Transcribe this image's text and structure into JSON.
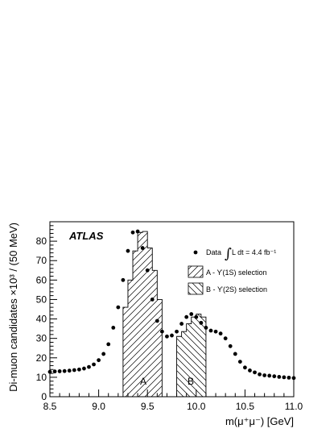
{
  "chart_data": {
    "type": "scatter",
    "experiment_label": "ATLAS",
    "xlabel": "m(μ⁺μ⁻) [GeV]",
    "ylabel": "Di-muon candidates ×10³ / (50 MeV)",
    "xlim": [
      8.5,
      11.0
    ],
    "ylim": [
      0,
      90
    ],
    "x_ticks": [
      "8.5",
      "9.0",
      "9.5",
      "10.0",
      "10.5",
      "11.0"
    ],
    "y_ticks": [
      "0",
      "10",
      "20",
      "30",
      "40",
      "50",
      "60",
      "70",
      "80"
    ],
    "grid": false,
    "legend_position": "top-right",
    "legend": {
      "data": "Data",
      "integral_sign": "∫",
      "luminosity": "L dt = 4.4 fb⁻¹",
      "selection_a": "A - ϒ(1S) selection",
      "selection_b": "B - ϒ(2S) selection"
    },
    "region_labels": {
      "a": "A",
      "b": "B"
    },
    "series": [
      {
        "name": "Data",
        "style": "markers",
        "x": [
          8.5,
          8.55,
          8.6,
          8.65,
          8.7,
          8.75,
          8.8,
          8.85,
          8.9,
          8.95,
          9.0,
          9.05,
          9.1,
          9.15,
          9.2,
          9.25,
          9.3,
          9.35,
          9.4,
          9.45,
          9.5,
          9.55,
          9.6,
          9.65,
          9.7,
          9.75,
          9.8,
          9.85,
          9.9,
          9.95,
          10.0,
          10.05,
          10.1,
          10.15,
          10.2,
          10.25,
          10.3,
          10.35,
          10.4,
          10.45,
          10.5,
          10.55,
          10.6,
          10.65,
          10.7,
          10.75,
          10.8,
          10.85,
          10.9,
          10.95,
          11.0
        ],
        "y": [
          12.8,
          13.0,
          13.1,
          13.2,
          13.4,
          13.7,
          14.0,
          14.5,
          15.3,
          16.6,
          18.8,
          22.0,
          27.0,
          35.5,
          46.0,
          60.0,
          75.0,
          84.5,
          85.0,
          76.5,
          65.0,
          50.0,
          39.0,
          33.5,
          31.0,
          31.5,
          33.5,
          37.5,
          41.0,
          42.5,
          41.0,
          38.0,
          35.5,
          34.0,
          33.5,
          32.5,
          30.0,
          26.0,
          22.0,
          18.0,
          15.0,
          13.5,
          12.5,
          11.5,
          11.0,
          10.8,
          10.5,
          10.2,
          10.0,
          9.8,
          9.6
        ]
      },
      {
        "name": "A - ϒ(1S) selection",
        "style": "hatched-histogram",
        "bin_edges": [
          9.25,
          9.3,
          9.35,
          9.4,
          9.45,
          9.5,
          9.55,
          9.6,
          9.65
        ],
        "values": [
          46.0,
          60.0,
          75.0,
          84.5,
          85.0,
          76.5,
          65.0,
          50.0
        ]
      },
      {
        "name": "B - ϒ(2S) selection",
        "style": "hatched-histogram",
        "bin_edges": [
          9.8,
          9.85,
          9.9,
          9.95,
          10.0,
          10.05,
          10.1
        ],
        "values": [
          31.0,
          33.5,
          37.5,
          41.0,
          42.5,
          41.0
        ]
      }
    ]
  }
}
